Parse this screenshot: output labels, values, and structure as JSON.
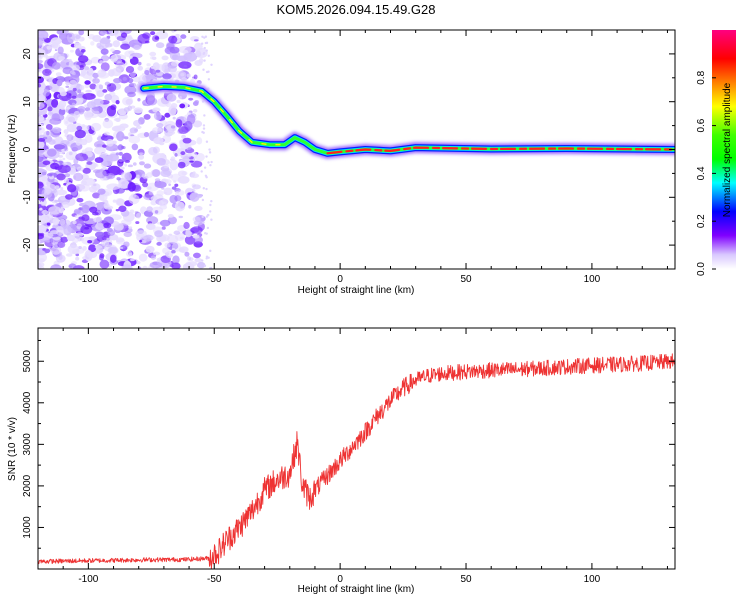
{
  "title": "KOM5.2026.094.15.49.G28",
  "chart_data": [
    {
      "type": "heatmap",
      "name": "spectrogram",
      "xlabel": "Height of straight line (km)",
      "ylabel": "Frequency (Hz)",
      "xlim": [
        -120,
        133
      ],
      "ylim": [
        -25,
        25
      ],
      "xticks": [
        -100,
        -50,
        0,
        50,
        100
      ],
      "yticks": [
        -20,
        -10,
        0,
        10,
        20
      ],
      "ridge_track": [
        {
          "x": -78,
          "y": 12.8
        },
        {
          "x": -70,
          "y": 13.2
        },
        {
          "x": -62,
          "y": 13.0
        },
        {
          "x": -55,
          "y": 12.2
        },
        {
          "x": -50,
          "y": 10.0
        },
        {
          "x": -45,
          "y": 7.0
        },
        {
          "x": -40,
          "y": 3.8
        },
        {
          "x": -35,
          "y": 1.5
        },
        {
          "x": -28,
          "y": 1.0
        },
        {
          "x": -22,
          "y": 1.0
        },
        {
          "x": -18,
          "y": 2.5
        },
        {
          "x": -14,
          "y": 1.5
        },
        {
          "x": -10,
          "y": 0.0
        },
        {
          "x": -5,
          "y": -0.8
        },
        {
          "x": 0,
          "y": -0.5
        },
        {
          "x": 10,
          "y": 0.0
        },
        {
          "x": 20,
          "y": -0.3
        },
        {
          "x": 30,
          "y": 0.4
        },
        {
          "x": 60,
          "y": 0.1
        },
        {
          "x": 90,
          "y": 0.2
        },
        {
          "x": 133,
          "y": 0.0
        }
      ],
      "colorbar": {
        "label": "Normalized spectral amplitude",
        "range": [
          0,
          1
        ],
        "ticks": [
          0.0,
          0.2,
          0.4,
          0.6,
          0.8
        ],
        "tick_labels": [
          "0.0",
          "0.2",
          "0.4",
          "0.6",
          "0.8"
        ],
        "colormap": [
          "#ffffff",
          "#d9c8ff",
          "#8000ff",
          "#0000ff",
          "#00ffff",
          "#00ff00",
          "#ffff00",
          "#ff8000",
          "#ff0000",
          "#ff0080"
        ]
      }
    },
    {
      "type": "line",
      "name": "snr",
      "xlabel": "Height of straight line (km)",
      "ylabel": "SNR (10 * v/v)",
      "xlim": [
        -120,
        133
      ],
      "ylim": [
        0,
        5800
      ],
      "xticks": [
        -100,
        -50,
        0,
        50,
        100
      ],
      "yticks": [
        1000,
        2000,
        3000,
        4000,
        5000
      ],
      "series": [
        {
          "name": "SNR",
          "color": "#ee3333",
          "x": [
            -120,
            -100,
            -80,
            -60,
            -52,
            -48,
            -45,
            -40,
            -35,
            -30,
            -25,
            -20,
            -17,
            -15,
            -12,
            -10,
            -5,
            0,
            5,
            10,
            15,
            20,
            25,
            30,
            35,
            40,
            50,
            60,
            70,
            80,
            90,
            100,
            110,
            120,
            133
          ],
          "y": [
            180,
            200,
            220,
            230,
            260,
            450,
            700,
            1000,
            1400,
            1900,
            2150,
            2300,
            3050,
            2000,
            1700,
            1900,
            2250,
            2600,
            2950,
            3300,
            3700,
            4050,
            4350,
            4550,
            4650,
            4700,
            4750,
            4780,
            4800,
            4830,
            4870,
            4900,
            4920,
            4950,
            5000
          ]
        }
      ]
    }
  ]
}
